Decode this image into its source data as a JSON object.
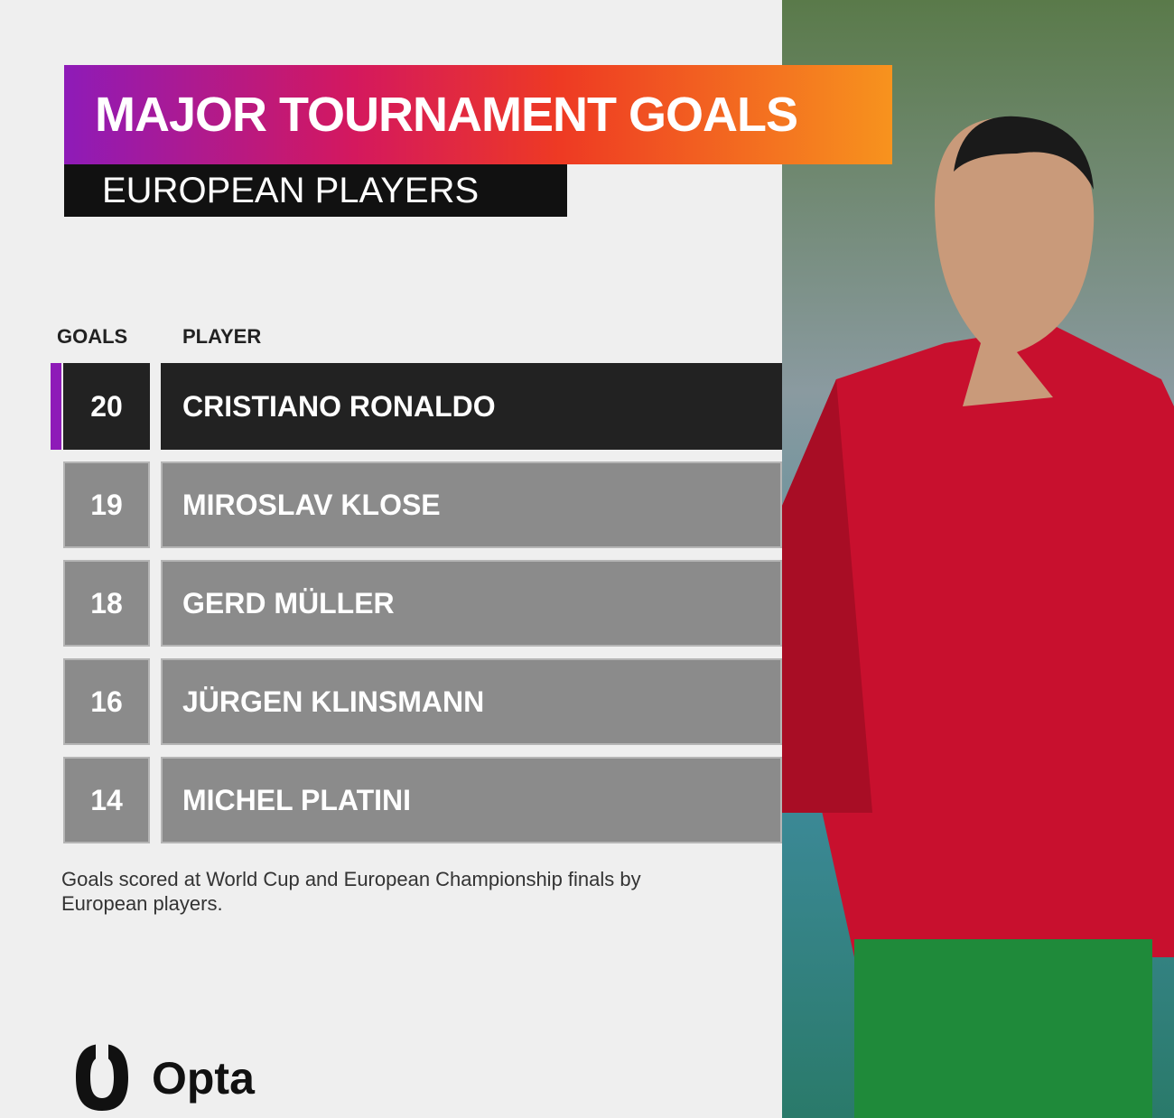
{
  "header": {
    "title": "MAJOR TOURNAMENT GOALS",
    "subtitle": "EUROPEAN PLAYERS"
  },
  "table": {
    "columns": [
      "GOALS",
      "PLAYER"
    ],
    "rows": [
      [
        20,
        "CRISTIANO RONALDO"
      ],
      [
        19,
        "MIROSLAV KLOSE"
      ],
      [
        18,
        "GERD MÜLLER"
      ],
      [
        16,
        "JÜRGEN KLINSMANN"
      ],
      [
        14,
        "MICHEL PLATINI"
      ]
    ]
  },
  "footnote": "Goals scored at World Cup and European Championship finals by European players.",
  "brand": "Opta"
}
